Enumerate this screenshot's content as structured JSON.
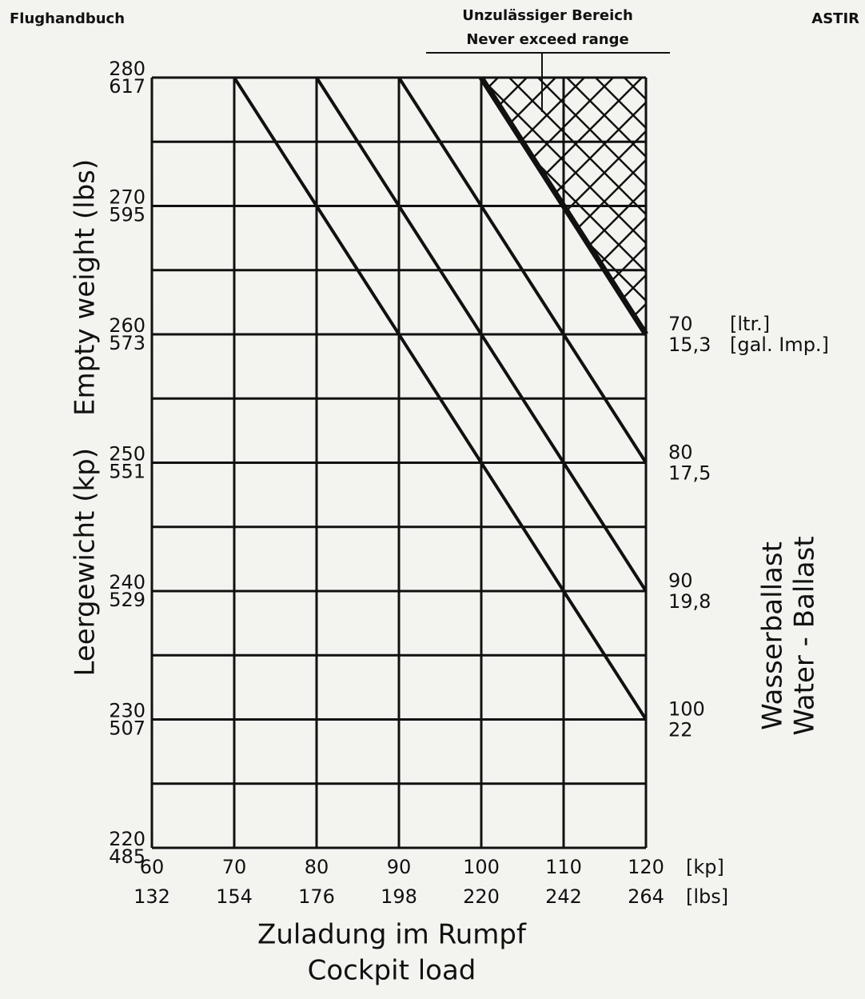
{
  "chart_data": {
    "type": "line",
    "page_header_left": "Flughandbuch",
    "page_header_right": "ASTIR",
    "annotation": [
      "Unzulässiger Bereich",
      "Never exceed range"
    ],
    "ylabel": [
      "Leergewicht (kp)",
      "Empty weight (lbs)"
    ],
    "xlabel": [
      "Zuladung im Rumpf",
      "Cockpit load"
    ],
    "y2label": [
      "Wasserballast",
      "Water - Ballast"
    ],
    "xunits": [
      "[kp]",
      "[lbs]"
    ],
    "series_units": [
      "[ltr.]",
      "[gal. Imp.]"
    ],
    "xlim": [
      60,
      120
    ],
    "ylim": [
      220,
      280
    ],
    "xticks": [
      60,
      70,
      80,
      90,
      100,
      110,
      120
    ],
    "xticks_lbs": [
      132,
      154,
      176,
      198,
      220,
      242,
      264
    ],
    "yticks": [
      220,
      230,
      240,
      250,
      260,
      270,
      280
    ],
    "yticks_lbs": [
      485,
      507,
      529,
      551,
      573,
      595,
      617
    ],
    "yminorticks": [
      225,
      235,
      245,
      255,
      265,
      275
    ],
    "grid": true,
    "series": [
      {
        "name": "70",
        "name_gal": "15,3",
        "color": "#111111",
        "x": [
          100,
          120
        ],
        "values": [
          280,
          260
        ]
      },
      {
        "name": "80",
        "name_gal": "17,5",
        "color": "#111111",
        "x": [
          90,
          120
        ],
        "values": [
          280,
          250
        ]
      },
      {
        "name": "90",
        "name_gal": "19,8",
        "color": "#111111",
        "x": [
          80,
          120
        ],
        "values": [
          280,
          240
        ]
      },
      {
        "name": "100",
        "name_gal": "22",
        "color": "#111111",
        "x": [
          70,
          120
        ],
        "values": [
          280,
          230
        ]
      }
    ]
  }
}
